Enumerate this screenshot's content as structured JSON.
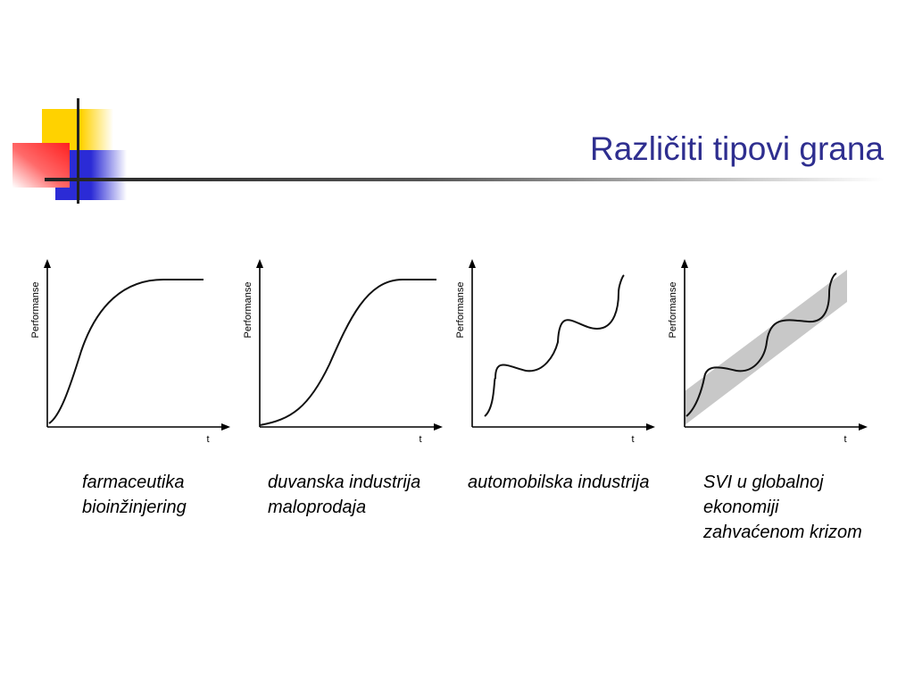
{
  "slide": {
    "title": "Različiti tipovi grana"
  },
  "colors": {
    "title": "#2e2e8f",
    "deco_yellow": "#ffd200",
    "deco_blue": "#2b2bd6",
    "deco_red": "#ff3030",
    "band": "#c8c8c8"
  },
  "panels": [
    {
      "ylabel": "Performanse",
      "xlabel": "t",
      "curve": "rapid-rise-saturation",
      "caption_lines": [
        "farmaceutika",
        "bioinžinjering"
      ]
    },
    {
      "ylabel": "Performanse",
      "xlabel": "t",
      "curve": "s-curve",
      "caption_lines": [
        "duvanska industrija",
        "maloprodaja"
      ]
    },
    {
      "ylabel": "Performanse",
      "xlabel": "t",
      "curve": "successive-waves",
      "caption_lines": [
        "automobilska industrija"
      ]
    },
    {
      "ylabel": "Performanse",
      "xlabel": "t",
      "curve": "successive-waves-with-band",
      "caption_lines": [
        "SVI u globalnoj",
        "ekonomiji",
        "zahvaćenom krizom"
      ]
    }
  ]
}
